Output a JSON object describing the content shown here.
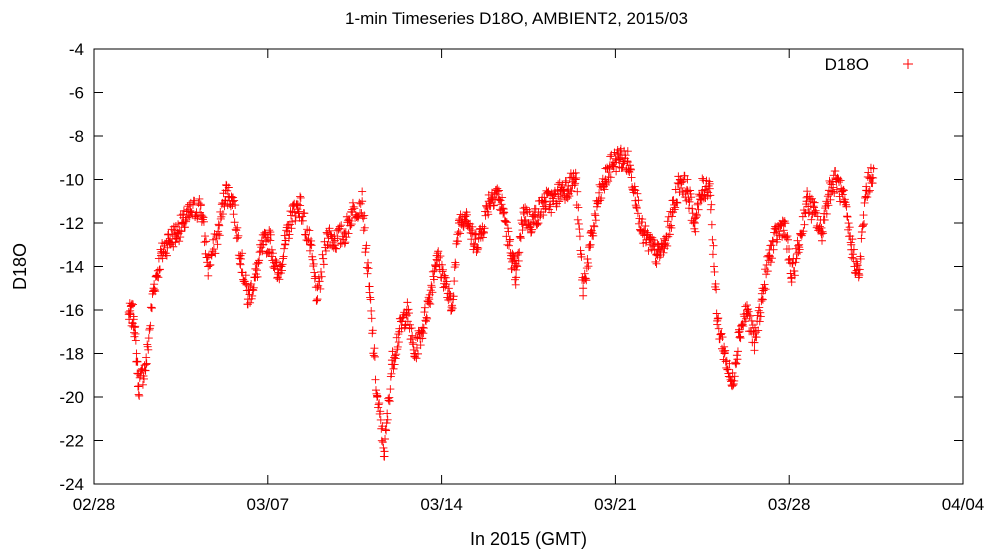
{
  "chart_data": {
    "type": "scatter",
    "title": "1-min Timeseries D18O, AMBIENT2, 2015/03",
    "xlabel": "In 2015 (GMT)",
    "ylabel": "D18O",
    "x_ticks": [
      "02/28",
      "03/07",
      "03/14",
      "03/21",
      "03/28",
      "04/04"
    ],
    "y_ticks": [
      -4,
      -6,
      -8,
      -10,
      -12,
      -14,
      -16,
      -18,
      -20,
      -22,
      -24
    ],
    "ylim": [
      -24,
      -4
    ],
    "xlim_days_from_0228": [
      0,
      35
    ],
    "grid": false,
    "legend": {
      "position": "top-right",
      "entry": "D18O"
    },
    "colors": {
      "series": "#ff0000"
    },
    "series": [
      {
        "name": "D18O",
        "marker": "+",
        "x_day": [
          1.4,
          1.6,
          1.8,
          2.1,
          2.4,
          2.7,
          3.0,
          3.3,
          3.6,
          3.9,
          4.3,
          4.6,
          5.0,
          5.3,
          5.6,
          5.9,
          6.2,
          6.5,
          6.8,
          7.1,
          7.4,
          7.7,
          8.0,
          8.3,
          8.7,
          9.0,
          9.4,
          9.7,
          10.1,
          10.4,
          10.8,
          11.1,
          11.4,
          11.7,
          12.0,
          12.3,
          12.6,
          12.9,
          13.2,
          13.5,
          13.8,
          14.1,
          14.4,
          14.7,
          15.0,
          15.3,
          15.6,
          15.9,
          16.2,
          16.5,
          16.8,
          17.0,
          17.3,
          17.6,
          17.9,
          18.2,
          18.5,
          18.8,
          19.1,
          19.4,
          19.7,
          20.0,
          20.3,
          20.6,
          20.9,
          21.2,
          21.5,
          21.8,
          22.1,
          22.4,
          22.7,
          23.0,
          23.3,
          23.6,
          23.9,
          24.2,
          24.5,
          24.8,
          25.1,
          25.4,
          25.7,
          26.0,
          26.3,
          26.6,
          26.9,
          27.2,
          27.5,
          27.8,
          28.1,
          28.4,
          28.7,
          29.0,
          29.3,
          29.6,
          29.9,
          30.2,
          30.5,
          30.8,
          31.1,
          31.4
        ],
        "y": [
          -16.2,
          -16.3,
          -19.5,
          -18.5,
          -15.0,
          -13.5,
          -12.8,
          -12.5,
          -12.0,
          -11.5,
          -11.2,
          -14.0,
          -12.5,
          -10.5,
          -11.0,
          -13.5,
          -15.5,
          -14.5,
          -13.0,
          -12.8,
          -14.5,
          -13.0,
          -11.5,
          -11.2,
          -13.0,
          -15.5,
          -12.5,
          -12.8,
          -12.5,
          -11.5,
          -11.0,
          -15.2,
          -20.0,
          -22.5,
          -18.5,
          -17.0,
          -16.0,
          -18.0,
          -17.0,
          -15.5,
          -13.5,
          -14.5,
          -16.0,
          -12.0,
          -11.5,
          -13.0,
          -12.5,
          -11.0,
          -10.5,
          -11.5,
          -13.5,
          -14.5,
          -11.5,
          -12.0,
          -11.5,
          -11.0,
          -11.0,
          -10.5,
          -10.3,
          -10.0,
          -15.0,
          -13.0,
          -11.0,
          -10.0,
          -9.2,
          -9.0,
          -9.2,
          -10.5,
          -12.5,
          -13.0,
          -13.5,
          -13.0,
          -11.5,
          -10.0,
          -10.5,
          -12.0,
          -10.5,
          -10.2,
          -16.5,
          -18.0,
          -19.5,
          -17.0,
          -16.0,
          -17.5,
          -15.5,
          -13.5,
          -12.5,
          -12.0,
          -14.5,
          -13.0,
          -11.0,
          -11.5,
          -12.5,
          -10.5,
          -10.0,
          -11.0,
          -13.0,
          -14.5,
          -10.5,
          -9.5
        ]
      }
    ]
  }
}
